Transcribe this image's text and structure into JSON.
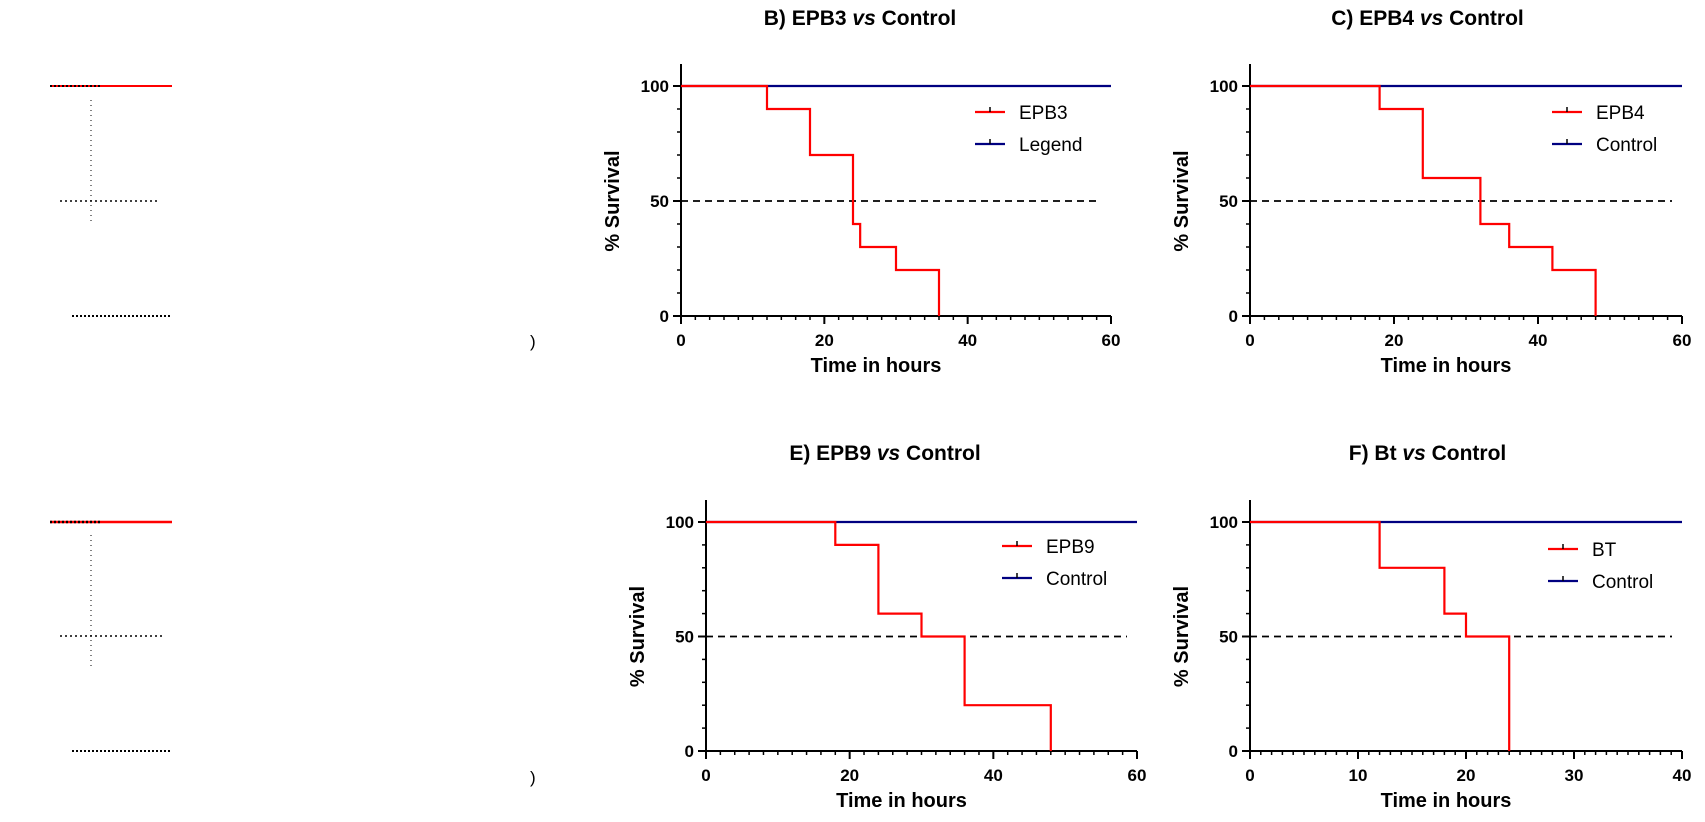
{
  "colors": {
    "treated": "#ff0000",
    "control": "#000080",
    "axis": "#000000",
    "median": "#000000"
  },
  "residue": {
    "note_marks": [
      ")",
      ")"
    ]
  },
  "panels": [
    {
      "id": "B",
      "title_prefix": "B) EPB3 ",
      "title_vs": "vs",
      "title_suffix": " Control",
      "legend_position": "top-right"
    },
    {
      "id": "C",
      "title_prefix": "C) EPB4 ",
      "title_vs": "vs",
      "title_suffix": " Control",
      "legend_position": "top-right"
    },
    {
      "id": "E",
      "title_prefix": "E) EPB9 ",
      "title_vs": "vs",
      "title_suffix": " Control",
      "legend_position": "top-right"
    },
    {
      "id": "F",
      "title_prefix": "F) Bt ",
      "title_vs": "vs",
      "title_suffix": " Control",
      "legend_position": "top-right"
    }
  ],
  "chart_data": [
    {
      "type": "line",
      "title": "B) EPB3 vs Control",
      "xlabel": "Time in hours",
      "ylabel": "% Survival",
      "xlim": [
        0,
        60
      ],
      "ylim": [
        0,
        100
      ],
      "xticks": [
        0,
        20,
        40,
        60
      ],
      "yticks": [
        0,
        50,
        100
      ],
      "median_line": 50,
      "series": [
        {
          "name": "EPB3",
          "color": "#ff0000",
          "step": true,
          "x": [
            0,
            12,
            18,
            24,
            24.5,
            25,
            30,
            36
          ],
          "y": [
            100,
            90,
            70,
            40,
            40,
            30,
            20,
            0
          ],
          "censored": []
        },
        {
          "name": "Legend",
          "color": "#000080",
          "step": true,
          "x": [
            0,
            60
          ],
          "y": [
            100,
            100
          ],
          "censored": []
        }
      ]
    },
    {
      "type": "line",
      "title": "C) EPB4 vs Control",
      "xlabel": "Time in hours",
      "ylabel": "% Survival",
      "xlim": [
        0,
        60
      ],
      "ylim": [
        0,
        100
      ],
      "xticks": [
        0,
        20,
        40,
        60
      ],
      "yticks": [
        0,
        50,
        100
      ],
      "median_line": 50,
      "series": [
        {
          "name": "EPB4",
          "color": "#ff0000",
          "step": true,
          "x": [
            0,
            18,
            24,
            32,
            36,
            42,
            48
          ],
          "y": [
            100,
            90,
            60,
            40,
            30,
            20,
            0
          ],
          "censored": []
        },
        {
          "name": "Control",
          "color": "#000080",
          "step": true,
          "x": [
            0,
            60
          ],
          "y": [
            100,
            100
          ],
          "censored": []
        }
      ]
    },
    {
      "type": "line",
      "title": "E) EPB9 vs Control",
      "xlabel": "Time in hours",
      "ylabel": "% Survival",
      "xlim": [
        0,
        60
      ],
      "ylim": [
        0,
        100
      ],
      "xticks": [
        0,
        20,
        40,
        60
      ],
      "yticks": [
        0,
        50,
        100
      ],
      "median_line": 50,
      "series": [
        {
          "name": "EPB9",
          "color": "#ff0000",
          "step": true,
          "x": [
            0,
            18,
            24,
            30,
            36,
            48
          ],
          "y": [
            100,
            90,
            60,
            50,
            20,
            0
          ],
          "censored": []
        },
        {
          "name": "Control",
          "color": "#000080",
          "step": true,
          "x": [
            0,
            60
          ],
          "y": [
            100,
            100
          ],
          "censored": []
        }
      ]
    },
    {
      "type": "line",
      "title": "F) Bt vs Control",
      "xlabel": "Time in hours",
      "ylabel": "% Survival",
      "xlim": [
        0,
        40
      ],
      "ylim": [
        0,
        100
      ],
      "xticks": [
        0,
        10,
        20,
        30,
        40
      ],
      "yticks": [
        0,
        50,
        100
      ],
      "median_line": 50,
      "series": [
        {
          "name": "BT",
          "color": "#ff0000",
          "step": true,
          "x": [
            0,
            12,
            18,
            20,
            24
          ],
          "y": [
            100,
            80,
            60,
            50,
            0
          ],
          "censored": []
        },
        {
          "name": "Control",
          "color": "#000080",
          "step": true,
          "x": [
            0,
            40
          ],
          "y": [
            100,
            100
          ],
          "censored": []
        }
      ]
    }
  ]
}
